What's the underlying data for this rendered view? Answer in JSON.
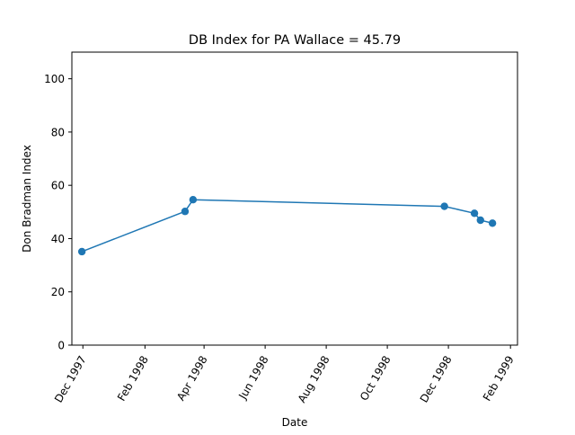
{
  "chart_data": {
    "type": "line",
    "title": "DB Index for PA Wallace = 45.79",
    "xlabel": "Date",
    "ylabel": "Don Bradman Index",
    "x_type": "date",
    "xlim": [
      "1997-11-20",
      "1999-02-08"
    ],
    "ylim": [
      0,
      110
    ],
    "x_ticks": [
      {
        "date": "1997-12-01",
        "label": "Dec 1997"
      },
      {
        "date": "1998-02-01",
        "label": "Feb 1998"
      },
      {
        "date": "1998-04-01",
        "label": "Apr 1998"
      },
      {
        "date": "1998-06-01",
        "label": "Jun 1998"
      },
      {
        "date": "1998-08-01",
        "label": "Aug 1998"
      },
      {
        "date": "1998-10-01",
        "label": "Oct 1998"
      },
      {
        "date": "1998-12-01",
        "label": "Dec 1998"
      },
      {
        "date": "1999-02-01",
        "label": "Feb 1999"
      }
    ],
    "y_ticks": [
      0,
      20,
      40,
      60,
      80,
      100
    ],
    "grid": false,
    "legend": "none",
    "series": [
      {
        "color": "#1f77b4",
        "marker": "circle",
        "points": [
          {
            "x": "1997-11-30",
            "y": 35.1
          },
          {
            "x": "1998-03-13",
            "y": 50.2
          },
          {
            "x": "1998-03-21",
            "y": 54.6
          },
          {
            "x": "1998-11-27",
            "y": 52.1
          },
          {
            "x": "1998-12-27",
            "y": 49.5
          },
          {
            "x": "1999-01-02",
            "y": 46.9
          },
          {
            "x": "1999-01-14",
            "y": 45.79
          }
        ]
      }
    ]
  }
}
